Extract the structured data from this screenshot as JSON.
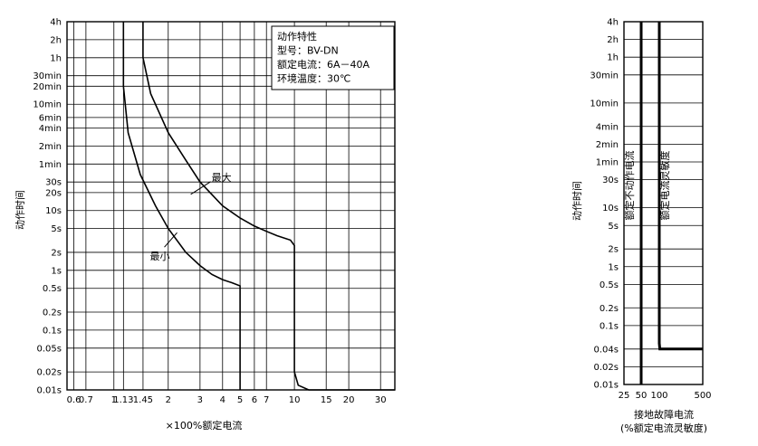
{
  "chart_data": [
    {
      "type": "line",
      "title": "",
      "xlabel": "×100%额定电流",
      "ylabel": "动作时间",
      "x_scale": "log",
      "y_scale": "log",
      "xlim": [
        0.55,
        36
      ],
      "ylim_seconds": [
        0.01,
        14400
      ],
      "grid": true,
      "x_ticks": [
        {
          "value": 0.6,
          "label": "0.6"
        },
        {
          "value": 0.7,
          "label": "0.7"
        },
        {
          "value": 1,
          "label": "1"
        },
        {
          "value": 1.13,
          "label": "1.13"
        },
        {
          "value": 1.45,
          "label": "1.45"
        },
        {
          "value": 2,
          "label": "2"
        },
        {
          "value": 3,
          "label": "3"
        },
        {
          "value": 4,
          "label": "4"
        },
        {
          "value": 5,
          "label": "5"
        },
        {
          "value": 6,
          "label": "6"
        },
        {
          "value": 7,
          "label": "7"
        },
        {
          "value": 10,
          "label": "10"
        },
        {
          "value": 15,
          "label": "15"
        },
        {
          "value": 20,
          "label": "20"
        },
        {
          "value": 30,
          "label": "30"
        }
      ],
      "y_ticks": [
        {
          "seconds": 14400,
          "label": "4h"
        },
        {
          "seconds": 7200,
          "label": "2h"
        },
        {
          "seconds": 3600,
          "label": "1h"
        },
        {
          "seconds": 1800,
          "label": "30min"
        },
        {
          "seconds": 1200,
          "label": "20min"
        },
        {
          "seconds": 600,
          "label": "10min"
        },
        {
          "seconds": 360,
          "label": "6min"
        },
        {
          "seconds": 240,
          "label": "4min"
        },
        {
          "seconds": 120,
          "label": "2min"
        },
        {
          "seconds": 60,
          "label": "1min"
        },
        {
          "seconds": 30,
          "label": "30s"
        },
        {
          "seconds": 20,
          "label": "20s"
        },
        {
          "seconds": 10,
          "label": "10s"
        },
        {
          "seconds": 5,
          "label": "5s"
        },
        {
          "seconds": 2,
          "label": "2s"
        },
        {
          "seconds": 1,
          "label": "1s"
        },
        {
          "seconds": 0.5,
          "label": "0.5s"
        },
        {
          "seconds": 0.2,
          "label": "0.2s"
        },
        {
          "seconds": 0.1,
          "label": "0.1s"
        },
        {
          "seconds": 0.05,
          "label": "0.05s"
        },
        {
          "seconds": 0.02,
          "label": "0.02s"
        },
        {
          "seconds": 0.01,
          "label": "0.01s"
        }
      ],
      "series": [
        {
          "name": "最大",
          "x": [
            1.45,
            1.45,
            1.6,
            2,
            2.5,
            3,
            4,
            5,
            6,
            7,
            8,
            9.5,
            10,
            10,
            10.5,
            12,
            36
          ],
          "y": [
            14400,
            3600,
            900,
            200,
            70,
            30,
            12,
            7.5,
            5.5,
            4.5,
            3.8,
            3.2,
            2.6,
            0.02,
            0.012,
            0.01,
            0.01
          ]
        },
        {
          "name": "最小",
          "x": [
            1.13,
            1.13,
            1.2,
            1.4,
            1.7,
            2,
            2.5,
            3,
            3.5,
            4,
            4.5,
            5,
            5,
            5
          ],
          "y": [
            14400,
            1200,
            200,
            40,
            12,
            5,
            2,
            1.2,
            0.85,
            0.7,
            0.62,
            0.55,
            0.1,
            0.01
          ]
        }
      ],
      "annotations": [
        {
          "text": "最大",
          "x": 3.6,
          "y": 35
        },
        {
          "text": "最小",
          "x": 1.62,
          "y": 1.5
        }
      ],
      "spec_box": [
        "动作特性",
        "型号：BV-DN",
        "额定电流：6A－40A",
        "环境温度：30℃"
      ]
    },
    {
      "type": "line",
      "title": "",
      "xlabel_lines": [
        "接地故障电流",
        "(%额定电流灵敏度)"
      ],
      "ylabel": "动作时间",
      "x_scale": "custom",
      "y_scale": "log",
      "xlim": [
        25,
        500
      ],
      "ylim_seconds": [
        0.01,
        14400
      ],
      "grid": true,
      "x_ticks": [
        {
          "value": 25,
          "label": "25"
        },
        {
          "value": 50,
          "label": "50"
        },
        {
          "value": 100,
          "label": "100"
        },
        {
          "value": 500,
          "label": "500"
        }
      ],
      "y_ticks": [
        {
          "seconds": 14400,
          "label": "4h"
        },
        {
          "seconds": 7200,
          "label": "2h"
        },
        {
          "seconds": 3600,
          "label": "1h"
        },
        {
          "seconds": 1800,
          "label": "30min"
        },
        {
          "seconds": 600,
          "label": "10min"
        },
        {
          "seconds": 240,
          "label": "4min"
        },
        {
          "seconds": 120,
          "label": "2min"
        },
        {
          "seconds": 60,
          "label": "1min"
        },
        {
          "seconds": 30,
          "label": "30s"
        },
        {
          "seconds": 10,
          "label": "10s"
        },
        {
          "seconds": 5,
          "label": "5s"
        },
        {
          "seconds": 2,
          "label": "2s"
        },
        {
          "seconds": 1,
          "label": "1s"
        },
        {
          "seconds": 0.5,
          "label": "0.5s"
        },
        {
          "seconds": 0.2,
          "label": "0.2s"
        },
        {
          "seconds": 0.1,
          "label": "0.1s"
        },
        {
          "seconds": 0.04,
          "label": "0.04s"
        },
        {
          "seconds": 0.02,
          "label": "0.02s"
        },
        {
          "seconds": 0.01,
          "label": "0.01s"
        }
      ],
      "series": [
        {
          "name": "额定不动作电流",
          "x": [
            50,
            50
          ],
          "y": [
            14400,
            0.01
          ]
        },
        {
          "name": "额定电流灵敏度",
          "x": [
            100,
            100,
            105,
            500
          ],
          "y": [
            14400,
            0.05,
            0.04,
            0.04
          ]
        }
      ]
    }
  ]
}
